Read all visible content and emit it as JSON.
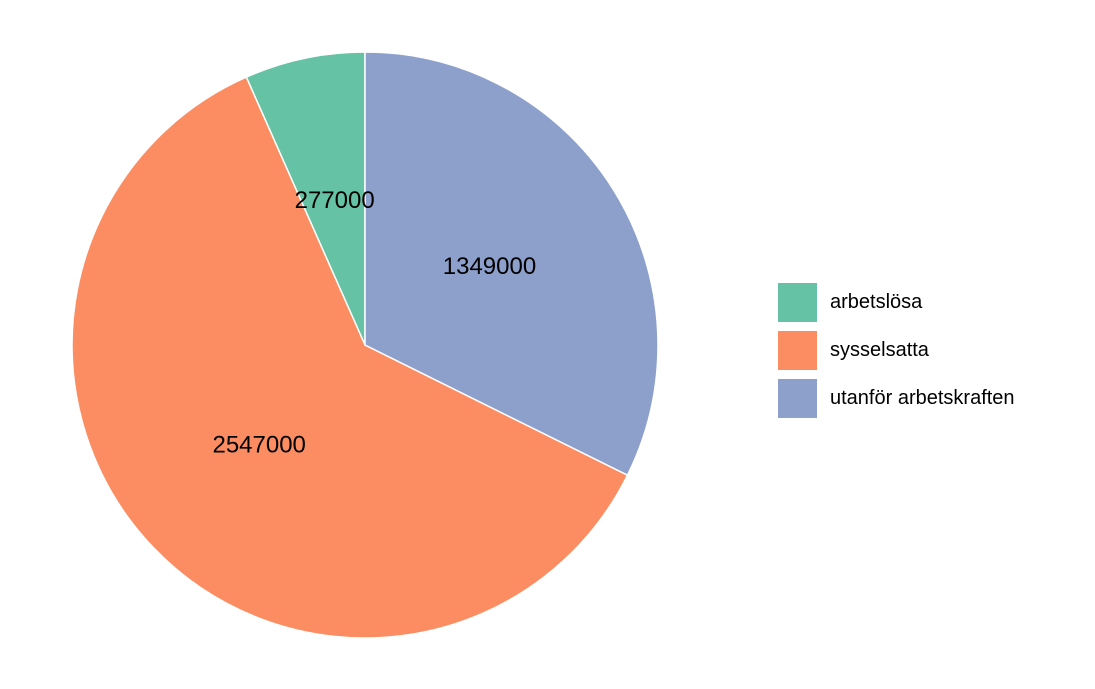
{
  "chart_data": {
    "type": "pie",
    "title": "",
    "categories": [
      "arbetslösa",
      "sysselsatta",
      "utanför arbetskraften"
    ],
    "values": [
      277000,
      2547000,
      1349000
    ],
    "value_labels": [
      "277000",
      "2547000",
      "1349000"
    ],
    "colors": [
      "#66c2a5",
      "#fc8d62",
      "#8da0cb"
    ],
    "start": "12 o'clock",
    "direction": "counter-clockwise",
    "legend": {
      "position": "right",
      "items": [
        {
          "label": "arbetslösa",
          "color": "#66c2a5"
        },
        {
          "label": "sysselsatta",
          "color": "#fc8d62"
        },
        {
          "label": "utanför arbetskraften",
          "color": "#8da0cb"
        }
      ]
    }
  }
}
